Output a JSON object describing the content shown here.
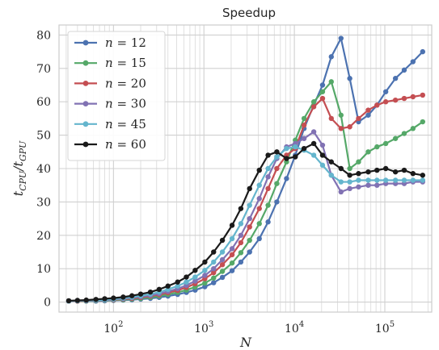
{
  "chart_data": {
    "type": "line",
    "title": "Speedup",
    "xlabel": "N",
    "ylabel": "t_{CPU}/t_{GPU}",
    "x_scale": "log",
    "xlim": [
      25,
      330000
    ],
    "ylim": [
      -3,
      83
    ],
    "x_ticks": [
      {
        "base": "10",
        "exp": "2",
        "value": 100
      },
      {
        "base": "10",
        "exp": "3",
        "value": 1000
      },
      {
        "base": "10",
        "exp": "4",
        "value": 10000
      },
      {
        "base": "10",
        "exp": "5",
        "value": 100000
      }
    ],
    "y_ticks": [
      0,
      10,
      20,
      30,
      40,
      50,
      60,
      70,
      80
    ],
    "grid": "on (major and minor, log x)",
    "legend_position": "upper-left",
    "x": [
      32,
      40,
      50,
      64,
      80,
      100,
      128,
      160,
      200,
      256,
      320,
      400,
      512,
      640,
      800,
      1024,
      1280,
      1600,
      2048,
      2560,
      3200,
      4096,
      5120,
      6400,
      8192,
      10240,
      12800,
      16384,
      20480,
      25600,
      32768,
      40960,
      51200,
      65536,
      81920,
      102400,
      131072,
      163840,
      204800,
      262144
    ],
    "series": [
      {
        "name": "n = 12",
        "color": "#4c72b0",
        "values": [
          0.3,
          0.3,
          0.3,
          0.3,
          0.4,
          0.5,
          0.6,
          0.7,
          0.9,
          1.1,
          1.4,
          1.8,
          2.3,
          2.9,
          3.6,
          4.6,
          5.8,
          7.4,
          9.4,
          12.0,
          15.0,
          19.0,
          24.0,
          30.0,
          37.0,
          44.0,
          52.0,
          59.0,
          65.0,
          73.5,
          79.0,
          67.0,
          54.0,
          56.0,
          59.0,
          63.0,
          67.0,
          69.5,
          72.0,
          75.0
        ]
      },
      {
        "name": "n = 15",
        "color": "#55a868",
        "values": [
          0.3,
          0.3,
          0.3,
          0.4,
          0.5,
          0.6,
          0.7,
          0.9,
          1.1,
          1.4,
          1.8,
          2.3,
          2.9,
          3.6,
          4.5,
          5.7,
          7.2,
          9.2,
          11.7,
          14.8,
          18.5,
          23.5,
          29.0,
          35.5,
          42.0,
          48.5,
          55.0,
          60.0,
          63.0,
          66.0,
          56.0,
          40.0,
          42.0,
          45.0,
          46.5,
          47.5,
          49.0,
          50.5,
          52.0,
          54.0
        ]
      },
      {
        "name": "n = 20",
        "color": "#c44e52",
        "values": [
          0.3,
          0.3,
          0.4,
          0.5,
          0.6,
          0.7,
          0.9,
          1.1,
          1.4,
          1.8,
          2.2,
          2.8,
          3.5,
          4.4,
          5.5,
          7.0,
          8.8,
          11.2,
          14.2,
          17.8,
          22.5,
          28.0,
          34.0,
          40.0,
          44.0,
          46.0,
          53.0,
          58.5,
          61.0,
          55.0,
          52.0,
          52.5,
          55.0,
          57.5,
          59.0,
          60.0,
          60.5,
          61.0,
          61.5,
          62.0
        ]
      },
      {
        "name": "n = 30",
        "color": "#8172b3",
        "values": [
          0.3,
          0.4,
          0.4,
          0.5,
          0.6,
          0.8,
          1.0,
          1.3,
          1.6,
          2.0,
          2.5,
          3.2,
          4.0,
          5.0,
          6.3,
          8.0,
          10.0,
          12.7,
          16.0,
          20.0,
          25.0,
          31.0,
          37.5,
          43.0,
          46.5,
          47.5,
          49.0,
          51.0,
          47.0,
          38.0,
          33.0,
          34.0,
          34.5,
          35.0,
          35.0,
          35.5,
          35.5,
          35.5,
          36.0,
          36.0
        ]
      },
      {
        "name": "n = 45",
        "color": "#64b5cd",
        "values": [
          0.3,
          0.4,
          0.5,
          0.6,
          0.7,
          0.9,
          1.2,
          1.5,
          1.9,
          2.4,
          3.0,
          3.8,
          4.8,
          6.0,
          7.5,
          9.5,
          12.0,
          15.0,
          19.0,
          23.5,
          29.0,
          35.0,
          40.0,
          43.5,
          46.0,
          46.5,
          45.5,
          44.0,
          41.0,
          38.0,
          36.0,
          36.0,
          36.5,
          36.5,
          36.5,
          36.5,
          36.5,
          36.5,
          36.5,
          36.5
        ]
      },
      {
        "name": "n = 60",
        "color": "#1a1a1a",
        "values": [
          0.4,
          0.5,
          0.6,
          0.8,
          1.0,
          1.2,
          1.5,
          1.9,
          2.4,
          3.0,
          3.8,
          4.8,
          6.0,
          7.5,
          9.5,
          12.0,
          15.0,
          18.5,
          23.0,
          28.0,
          34.0,
          39.5,
          44.0,
          45.0,
          43.0,
          43.5,
          46.0,
          47.5,
          44.0,
          42.0,
          40.0,
          38.0,
          38.5,
          39.0,
          39.5,
          40.0,
          39.0,
          39.5,
          38.5,
          38.0
        ]
      }
    ]
  }
}
